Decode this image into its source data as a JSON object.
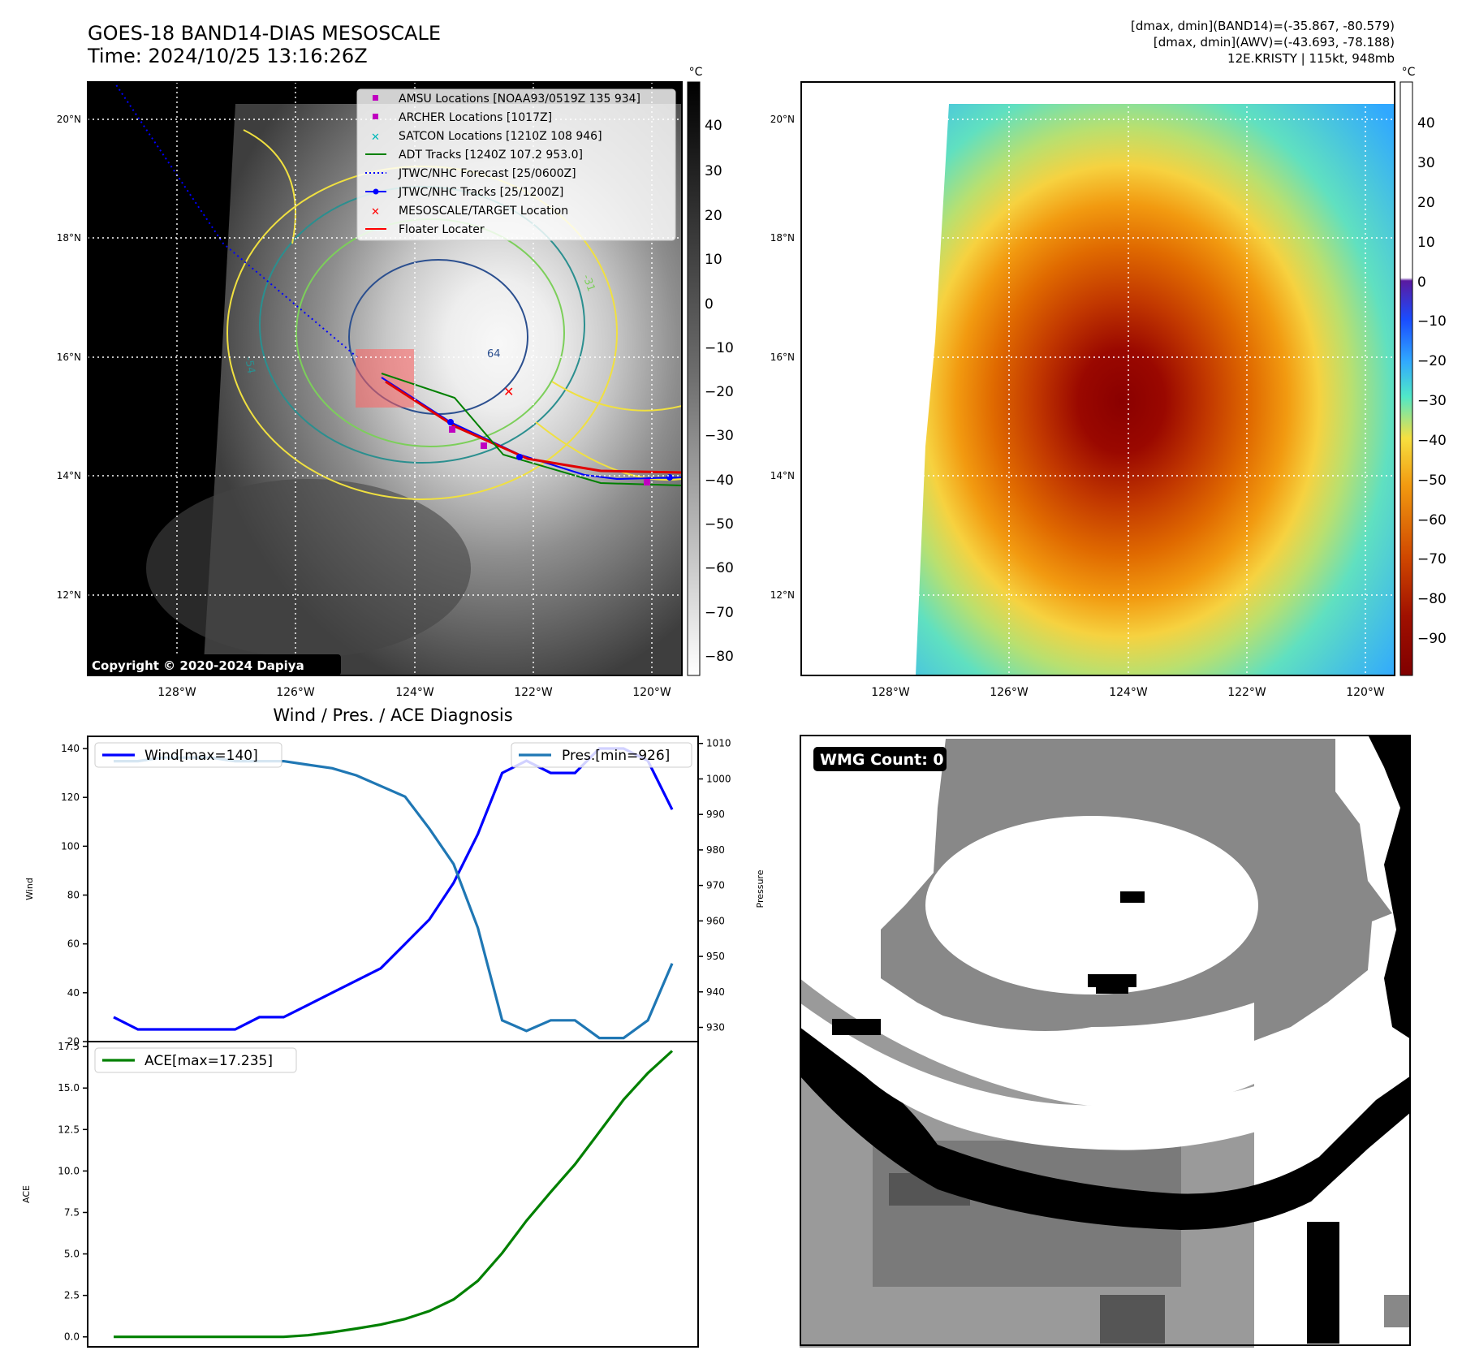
{
  "header": {
    "title_line1": "GOES-18 BAND14-DIAS MESOSCALE",
    "title_line2": "Time: 2024/10/25 13:16:26Z",
    "info_line1": "[dmax, dmin](BAND14)=(-35.867, -80.579)",
    "info_line2": "[dmax, dmin](AWV)=(-43.693, -78.188)",
    "info_line3": "12E.KRISTY | 115kt, 948mb"
  },
  "ir_panel": {
    "copyright": "Copyright © 2020-2024 Dapiya",
    "colorbar_unit": "°C",
    "colorbar_ticks": [
      "40",
      "30",
      "20",
      "10",
      "0",
      "−10",
      "−20",
      "−30",
      "−40",
      "−50",
      "−60",
      "−70",
      "−80"
    ],
    "lat_labels": [
      "20°N",
      "18°N",
      "16°N",
      "14°N",
      "12°N"
    ],
    "lon_labels": [
      "128°W",
      "126°W",
      "124°W",
      "122°W",
      "120°W"
    ],
    "contour_labels": [
      "-31",
      "-54",
      "64"
    ],
    "legend": [
      {
        "label": "AMSU Locations [NOAA93/0519Z 135 934]",
        "symbol": "square",
        "color": "#c000c0"
      },
      {
        "label": "ARCHER Locations [1017Z]",
        "symbol": "square",
        "color": "#c000c0"
      },
      {
        "label": "SATCON Locations [1210Z 108 946]",
        "symbol": "x",
        "color": "#00b8b8"
      },
      {
        "label": "ADT Tracks [1240Z 107.2 953.0]",
        "symbol": "line",
        "color": "#008000"
      },
      {
        "label": "JTWC/NHC Forecast [25/0600Z]",
        "symbol": "dotted",
        "color": "#0000ff"
      },
      {
        "label": "JTWC/NHC Tracks [25/1200Z]",
        "symbol": "line-dot",
        "color": "#0000ff"
      },
      {
        "label": "MESOSCALE/TARGET Location",
        "symbol": "x",
        "color": "#ff0000"
      },
      {
        "label": "Floater Locater",
        "symbol": "line",
        "color": "#ff0000"
      }
    ]
  },
  "awv_panel": {
    "colorbar_unit": "°C",
    "colorbar_ticks": [
      "40",
      "30",
      "20",
      "10",
      "0",
      "−10",
      "−20",
      "−30",
      "−40",
      "−50",
      "−60",
      "−70",
      "−80",
      "−90"
    ],
    "lat_labels": [
      "20°N",
      "18°N",
      "16°N",
      "14°N",
      "12°N"
    ],
    "lon_labels": [
      "128°W",
      "126°W",
      "124°W",
      "122°W",
      "120°W"
    ]
  },
  "diag_title": "Wind / Pres. / ACE Diagnosis",
  "wmg_panel": {
    "badge": "WMG Count: 0"
  },
  "colors": {
    "wind": "#0000ff",
    "pressure": "#1f77b4",
    "ace": "#008000"
  },
  "chart_data": [
    {
      "type": "line",
      "title": "Wind / Pres. / ACE Diagnosis",
      "ylabel": "Wind",
      "y2label": "Pressure",
      "ylim": [
        20,
        145
      ],
      "y2lim": [
        926,
        1012
      ],
      "yticks": [
        "140",
        "120",
        "100",
        "80",
        "60",
        "40",
        "20"
      ],
      "y2ticks": [
        "1010",
        "1000",
        "990",
        "980",
        "970",
        "960",
        "950",
        "940",
        "930"
      ],
      "series": [
        {
          "name": "Wind[max=140]",
          "axis": "left",
          "values": [
            30,
            25,
            25,
            25,
            25,
            25,
            30,
            30,
            35,
            40,
            45,
            50,
            60,
            70,
            85,
            105,
            130,
            135,
            130,
            130,
            140,
            140,
            135,
            115
          ]
        },
        {
          "name": "Pres.[min=926]",
          "axis": "right",
          "values": [
            1005,
            1005,
            1006,
            1006,
            1006,
            1005,
            1005,
            1005,
            1004,
            1003,
            1001,
            998,
            995,
            986,
            976,
            958,
            932,
            929,
            932,
            932,
            927,
            927,
            932,
            948
          ]
        }
      ]
    },
    {
      "type": "line",
      "ylabel": "ACE",
      "ylim": [
        -0.6,
        17.8
      ],
      "yticks": [
        "17.5",
        "15.0",
        "12.5",
        "10.0",
        "7.5",
        "5.0",
        "2.5",
        "0.0"
      ],
      "series": [
        {
          "name": "ACE[max=17.235]",
          "values": [
            0,
            0,
            0,
            0,
            0,
            0,
            0,
            0,
            0.1,
            0.28,
            0.5,
            0.74,
            1.08,
            1.56,
            2.26,
            3.38,
            5.05,
            7.0,
            8.73,
            10.4,
            12.35,
            14.3,
            15.9,
            17.235
          ]
        }
      ]
    }
  ]
}
